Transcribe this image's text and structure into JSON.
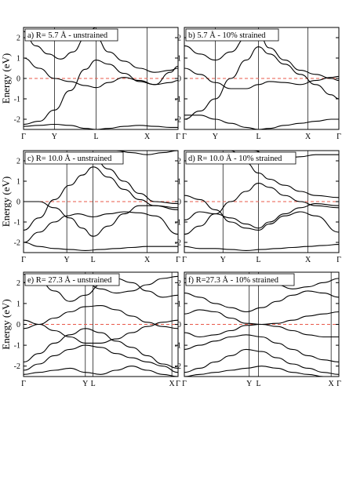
{
  "chart_data": [
    {
      "type": "line",
      "title": "a) R= 5.7 Å - unstrained",
      "ylabel": "Energy (eV)",
      "ylim": [
        -2.5,
        2.5
      ],
      "yticks": [
        "-2",
        "-1",
        "0",
        "1",
        "2"
      ],
      "kpoints": [
        {
          "label": "Γ",
          "pos": 0.0
        },
        {
          "label": "Y",
          "pos": 0.2
        },
        {
          "label": "L",
          "pos": 0.47
        },
        {
          "label": "X",
          "pos": 0.8
        },
        {
          "label": "Γ",
          "pos": 1.0
        }
      ],
      "fermi_level": 0,
      "series": [
        {
          "x": [
            0,
            0.1,
            0.2,
            0.3,
            0.4,
            0.47,
            0.55,
            0.65,
            0.75,
            0.85,
            0.95,
            1.0
          ],
          "values": [
            -2.25,
            -2.1,
            -1.55,
            -0.6,
            0.45,
            0.9,
            0.7,
            0.25,
            -0.15,
            -0.3,
            -0.2,
            -0.1
          ]
        },
        {
          "x": [
            0,
            0.1,
            0.2,
            0.3,
            0.4,
            0.47,
            0.55,
            0.65,
            0.75,
            0.85,
            0.95,
            1.0
          ],
          "values": [
            1.0,
            0.5,
            0.0,
            -0.15,
            -0.35,
            -0.45,
            -0.2,
            0.05,
            -0.1,
            -0.3,
            0.3,
            0.6
          ]
        },
        {
          "x": [
            0,
            0.08,
            0.16,
            0.24,
            0.32,
            0.4,
            0.47
          ],
          "values": [
            2.3,
            1.6,
            1.2,
            0.95,
            1.3,
            2.0,
            2.5
          ]
        },
        {
          "x": [
            0.47,
            0.55,
            0.65,
            0.75,
            0.85,
            0.95,
            1.0
          ],
          "values": [
            2.0,
            1.3,
            0.85,
            0.5,
            0.3,
            0.4,
            0.5
          ]
        },
        {
          "x": [
            0,
            0.1,
            0.2,
            0.3,
            0.4,
            0.47,
            0.55,
            0.65,
            0.75,
            0.85,
            0.95,
            1.0
          ],
          "values": [
            -2.35,
            -2.3,
            -2.25,
            -2.3,
            -2.45,
            -2.5,
            -2.45,
            -2.35,
            -2.3,
            -2.35,
            -2.4,
            -2.4
          ]
        }
      ]
    },
    {
      "type": "line",
      "title": "b) 5.7 Å - 10% strained",
      "ylabel": "",
      "ylim": [
        -2.5,
        2.5
      ],
      "yticks": [
        "-2",
        "-1",
        "0",
        "1",
        "2"
      ],
      "kpoints": [
        {
          "label": "Γ",
          "pos": 0.0
        },
        {
          "label": "Y",
          "pos": 0.2
        },
        {
          "label": "L",
          "pos": 0.48
        },
        {
          "label": "X",
          "pos": 0.8
        },
        {
          "label": "Γ",
          "pos": 1.0
        }
      ],
      "fermi_level": 0,
      "series": [
        {
          "x": [
            0,
            0.1,
            0.2,
            0.3,
            0.4,
            0.48,
            0.55,
            0.65,
            0.75,
            0.85,
            0.95,
            1.0
          ],
          "values": [
            -2.0,
            -1.6,
            -1.0,
            0.0,
            0.9,
            1.55,
            1.2,
            0.7,
            0.2,
            -0.3,
            -0.8,
            -1.0
          ]
        },
        {
          "x": [
            0,
            0.1,
            0.2,
            0.3,
            0.4,
            0.48,
            0.55,
            0.65,
            0.75,
            0.85,
            0.95,
            1.0
          ],
          "values": [
            0.5,
            0.2,
            -0.2,
            -0.5,
            -0.5,
            -0.3,
            -0.15,
            -0.2,
            -0.3,
            -0.1,
            0.05,
            0.1
          ]
        },
        {
          "x": [
            0,
            0.1,
            0.2,
            0.3,
            0.4,
            0.48
          ],
          "values": [
            1.6,
            1.2,
            0.9,
            1.3,
            2.0,
            2.4
          ]
        },
        {
          "x": [
            0.48,
            0.55,
            0.65,
            0.75,
            0.85,
            0.95,
            1.0
          ],
          "values": [
            2.2,
            1.5,
            0.9,
            0.4,
            0.2,
            0.0,
            -0.1
          ]
        },
        {
          "x": [
            0,
            0.1,
            0.2,
            0.3,
            0.4,
            0.48,
            0.55,
            0.65,
            0.75,
            0.85,
            0.95,
            1.0
          ],
          "values": [
            -1.8,
            -1.8,
            -2.0,
            -2.2,
            -2.4,
            -2.5,
            -2.45,
            -2.3,
            -2.2,
            -2.1,
            -2.0,
            -2.0
          ]
        }
      ]
    },
    {
      "type": "line",
      "title": "c) R= 10.0 Å - unstrained",
      "ylabel": "Energy (eV)",
      "ylim": [
        -2.5,
        2.5
      ],
      "yticks": [
        "-2",
        "-1",
        "0",
        "1",
        "2"
      ],
      "kpoints": [
        {
          "label": "Γ",
          "pos": 0.0
        },
        {
          "label": "Y",
          "pos": 0.28
        },
        {
          "label": "L",
          "pos": 0.45
        },
        {
          "label": "X",
          "pos": 0.8
        },
        {
          "label": "Γ",
          "pos": 1.0
        }
      ],
      "fermi_level": 0,
      "series": [
        {
          "x": [
            0,
            0.1,
            0.2,
            0.3,
            0.38,
            0.45,
            0.55,
            0.65,
            0.75,
            0.85,
            1.0
          ],
          "values": [
            -1.4,
            -0.8,
            0.1,
            0.8,
            1.3,
            1.7,
            1.2,
            0.6,
            0.1,
            -0.2,
            -0.3
          ]
        },
        {
          "x": [
            0,
            0.1,
            0.2,
            0.3,
            0.38,
            0.45,
            0.55,
            0.65,
            0.75,
            0.85,
            1.0
          ],
          "values": [
            0.0,
            0.0,
            -0.3,
            -0.8,
            -1.3,
            -1.7,
            -1.2,
            -0.6,
            -0.2,
            -0.2,
            -0.4
          ]
        },
        {
          "x": [
            0,
            0.1,
            0.2,
            0.28,
            0.35,
            0.45,
            0.55,
            0.65,
            0.75,
            0.85,
            1.0
          ],
          "values": [
            -2.0,
            -1.5,
            -1.0,
            -0.7,
            -0.6,
            -0.75,
            -0.6,
            -0.5,
            -0.55,
            -0.7,
            -1.6
          ]
        },
        {
          "x": [
            0.45,
            0.55,
            0.65,
            0.75,
            0.85,
            1.0
          ],
          "values": [
            2.2,
            1.6,
            1.0,
            0.4,
            0.0,
            -0.1
          ]
        },
        {
          "x": [
            0.6,
            0.7,
            0.8,
            0.9,
            1.0
          ],
          "values": [
            2.5,
            2.4,
            2.3,
            2.4,
            2.5
          ]
        },
        {
          "x": [
            0,
            0.1,
            0.2,
            0.3,
            0.4,
            0.5,
            0.6,
            0.7,
            0.8,
            0.9,
            1.0
          ],
          "values": [
            -2.0,
            -2.2,
            -2.3,
            -2.35,
            -2.4,
            -2.35,
            -2.3,
            -2.25,
            -2.2,
            -2.2,
            -2.2
          ]
        }
      ]
    },
    {
      "type": "line",
      "title": "d) R= 10.0 Å - 10% strained",
      "ylabel": "",
      "ylim": [
        -2.5,
        2.5
      ],
      "yticks": [
        "-2",
        "-1",
        "0",
        "1",
        "2"
      ],
      "kpoints": [
        {
          "label": "Γ",
          "pos": 0.0
        },
        {
          "label": "Y",
          "pos": 0.25
        },
        {
          "label": "L",
          "pos": 0.48
        },
        {
          "label": "X",
          "pos": 0.8
        },
        {
          "label": "Γ",
          "pos": 1.0
        }
      ],
      "fermi_level": 0,
      "series": [
        {
          "x": [
            0,
            0.1,
            0.2,
            0.3,
            0.4,
            0.48,
            0.55,
            0.65,
            0.75,
            0.85,
            1.0
          ],
          "values": [
            -1.6,
            -1.2,
            -0.6,
            0.0,
            0.5,
            0.9,
            0.7,
            0.3,
            0.0,
            -0.2,
            -0.3
          ]
        },
        {
          "x": [
            0,
            0.1,
            0.2,
            0.3,
            0.4,
            0.48,
            0.55,
            0.65,
            0.75,
            0.85,
            1.0
          ],
          "values": [
            -0.9,
            -0.5,
            -0.6,
            -0.8,
            -1.1,
            -1.3,
            -1.0,
            -0.6,
            -0.3,
            -0.1,
            -0.2
          ]
        },
        {
          "x": [
            0,
            0.1,
            0.2,
            0.3,
            0.4,
            0.48,
            0.55,
            0.65,
            0.75,
            0.85,
            1.0
          ],
          "values": [
            0.3,
            0.1,
            -0.4,
            -1.0,
            -1.3,
            -1.4,
            -1.1,
            -0.7,
            -0.5,
            -0.7,
            -1.5
          ]
        },
        {
          "x": [
            0.3,
            0.4,
            0.48,
            0.55,
            0.65,
            0.75,
            0.85,
            1.0
          ],
          "values": [
            2.5,
            1.9,
            1.4,
            1.1,
            0.8,
            0.5,
            0.3,
            0.2
          ]
        },
        {
          "x": [
            0.45,
            0.55,
            0.65,
            0.75,
            0.85,
            1.0
          ],
          "values": [
            2.5,
            2.2,
            2.1,
            2.2,
            2.3,
            2.3
          ]
        },
        {
          "x": [
            0,
            0.1,
            0.2,
            0.3,
            0.4,
            0.5,
            0.6,
            0.7,
            0.8,
            0.9,
            1.0
          ],
          "values": [
            -2.2,
            -2.3,
            -2.3,
            -2.35,
            -2.4,
            -2.35,
            -2.3,
            -2.25,
            -2.2,
            -2.15,
            -2.1
          ]
        }
      ]
    },
    {
      "type": "line",
      "title": "e) R= 27.3 Å - unstrained",
      "ylabel": "Energy (eV)",
      "ylim": [
        -2.5,
        2.5
      ],
      "yticks": [
        "-2",
        "-1",
        "0",
        "1",
        "2"
      ],
      "kpoints": [
        {
          "label": "Γ",
          "pos": 0.0
        },
        {
          "label": "Y",
          "pos": 0.4
        },
        {
          "label": "L",
          "pos": 0.45
        },
        {
          "label": "X",
          "pos": 0.96
        },
        {
          "label": "Γ",
          "pos": 1.0
        }
      ],
      "fermi_level": 0,
      "series": [
        {
          "x": [
            0,
            0.1,
            0.2,
            0.3,
            0.4,
            0.5,
            0.6,
            0.7,
            0.8,
            0.9,
            1.0
          ],
          "values": [
            -0.2,
            0.0,
            0.3,
            0.6,
            0.85,
            0.9,
            0.7,
            0.4,
            0.1,
            -0.1,
            -0.2
          ]
        },
        {
          "x": [
            0,
            0.1,
            0.2,
            0.3,
            0.4,
            0.5,
            0.6,
            0.7,
            0.8,
            0.9,
            1.0
          ],
          "values": [
            0.2,
            0.0,
            -0.3,
            -0.6,
            -0.9,
            -0.9,
            -0.7,
            -0.4,
            -0.1,
            0.1,
            0.2
          ]
        },
        {
          "x": [
            0,
            0.1,
            0.2,
            0.3,
            0.4,
            0.5,
            0.6,
            0.7,
            0.8,
            0.9,
            1.0
          ],
          "values": [
            -1.8,
            -1.4,
            -0.9,
            -0.5,
            -0.2,
            -0.4,
            -0.8,
            -1.1,
            -1.5,
            -1.9,
            -2.1
          ]
        },
        {
          "x": [
            0,
            0.1,
            0.2,
            0.3,
            0.4,
            0.5,
            0.6,
            0.7,
            0.8,
            0.9,
            1.0
          ],
          "values": [
            2.4,
            2.1,
            1.6,
            1.1,
            1.4,
            1.9,
            2.2,
            2.0,
            1.6,
            1.3,
            1.4
          ]
        },
        {
          "x": [
            0,
            0.1,
            0.2,
            0.3,
            0.4,
            0.5,
            0.6,
            0.7,
            0.8,
            0.9,
            1.0
          ],
          "values": [
            -2.2,
            -1.9,
            -1.5,
            -1.2,
            -1.0,
            -1.1,
            -1.4,
            -1.6,
            -1.8,
            -2.0,
            -2.3
          ]
        },
        {
          "x": [
            0,
            0.1,
            0.2,
            0.3,
            0.4,
            0.5,
            0.6,
            0.7,
            0.8,
            0.9,
            1.0
          ],
          "values": [
            -2.4,
            -2.3,
            -2.2,
            -2.1,
            -2.3,
            -2.4,
            -2.2,
            -2.0,
            -2.2,
            -2.4,
            -2.5
          ]
        },
        {
          "x": [
            0,
            0.1,
            0.2,
            0.3,
            0.4,
            0.5,
            0.6,
            0.7,
            0.8,
            0.9,
            1.0
          ],
          "values": [
            2.0,
            2.2,
            2.4,
            2.3,
            2.0,
            1.7,
            1.5,
            1.6,
            1.9,
            2.2,
            2.3
          ]
        }
      ]
    },
    {
      "type": "line",
      "title": "f) R=27.3 Å - 10% strained",
      "ylabel": "",
      "ylim": [
        -2.5,
        2.5
      ],
      "yticks": [
        "-2",
        "-1",
        "0",
        "1",
        "2"
      ],
      "kpoints": [
        {
          "label": "Γ",
          "pos": 0.0
        },
        {
          "label": "Y",
          "pos": 0.42
        },
        {
          "label": "L",
          "pos": 0.48
        },
        {
          "label": "X",
          "pos": 0.95
        },
        {
          "label": "Γ",
          "pos": 1.0
        }
      ],
      "fermi_level": 0,
      "series": [
        {
          "x": [
            0,
            0.1,
            0.2,
            0.3,
            0.4,
            0.5,
            0.6,
            0.7,
            0.8,
            0.9,
            1.0
          ],
          "values": [
            0.5,
            0.7,
            0.6,
            0.3,
            0.05,
            0.0,
            0.05,
            0.2,
            0.4,
            0.5,
            0.6
          ]
        },
        {
          "x": [
            0,
            0.1,
            0.2,
            0.3,
            0.4,
            0.5,
            0.6,
            0.7,
            0.8,
            0.9,
            1.0
          ],
          "values": [
            -0.4,
            -0.6,
            -0.5,
            -0.3,
            -0.05,
            0.0,
            -0.1,
            -0.3,
            -0.5,
            -0.6,
            -0.6
          ]
        },
        {
          "x": [
            0,
            0.1,
            0.2,
            0.3,
            0.4,
            0.5,
            0.6,
            0.7,
            0.8,
            0.9,
            1.0
          ],
          "values": [
            1.5,
            1.3,
            1.0,
            0.8,
            0.6,
            0.8,
            1.1,
            1.4,
            1.6,
            1.5,
            1.3
          ]
        },
        {
          "x": [
            0,
            0.1,
            0.2,
            0.3,
            0.4,
            0.5,
            0.6,
            0.7,
            0.8,
            0.9,
            1.0
          ],
          "values": [
            -1.2,
            -1.0,
            -0.8,
            -0.6,
            -0.5,
            -0.6,
            -0.9,
            -1.2,
            -1.5,
            -1.7,
            -1.8
          ]
        },
        {
          "x": [
            0,
            0.1,
            0.2,
            0.3,
            0.4,
            0.5,
            0.6,
            0.7,
            0.8,
            0.9,
            1.0
          ],
          "values": [
            -2.3,
            -2.1,
            -1.8,
            -1.5,
            -1.2,
            -1.3,
            -1.6,
            -1.9,
            -2.1,
            -2.3,
            -2.4
          ]
        },
        {
          "x": [
            0,
            0.1,
            0.2,
            0.3,
            0.4,
            0.5,
            0.6,
            0.7,
            0.8,
            0.9,
            1.0
          ],
          "values": [
            2.2,
            2.0,
            1.9,
            2.1,
            2.3,
            2.2,
            1.9,
            1.7,
            1.8,
            2.0,
            2.2
          ]
        },
        {
          "x": [
            0,
            0.1,
            0.2,
            0.3,
            0.4,
            0.5,
            0.6,
            0.7,
            0.8,
            0.9,
            1.0
          ],
          "values": [
            -2.5,
            -2.4,
            -2.3,
            -2.2,
            -2.1,
            -2.0,
            -2.1,
            -2.3,
            -2.4,
            -2.5,
            -2.5
          ]
        }
      ]
    }
  ]
}
